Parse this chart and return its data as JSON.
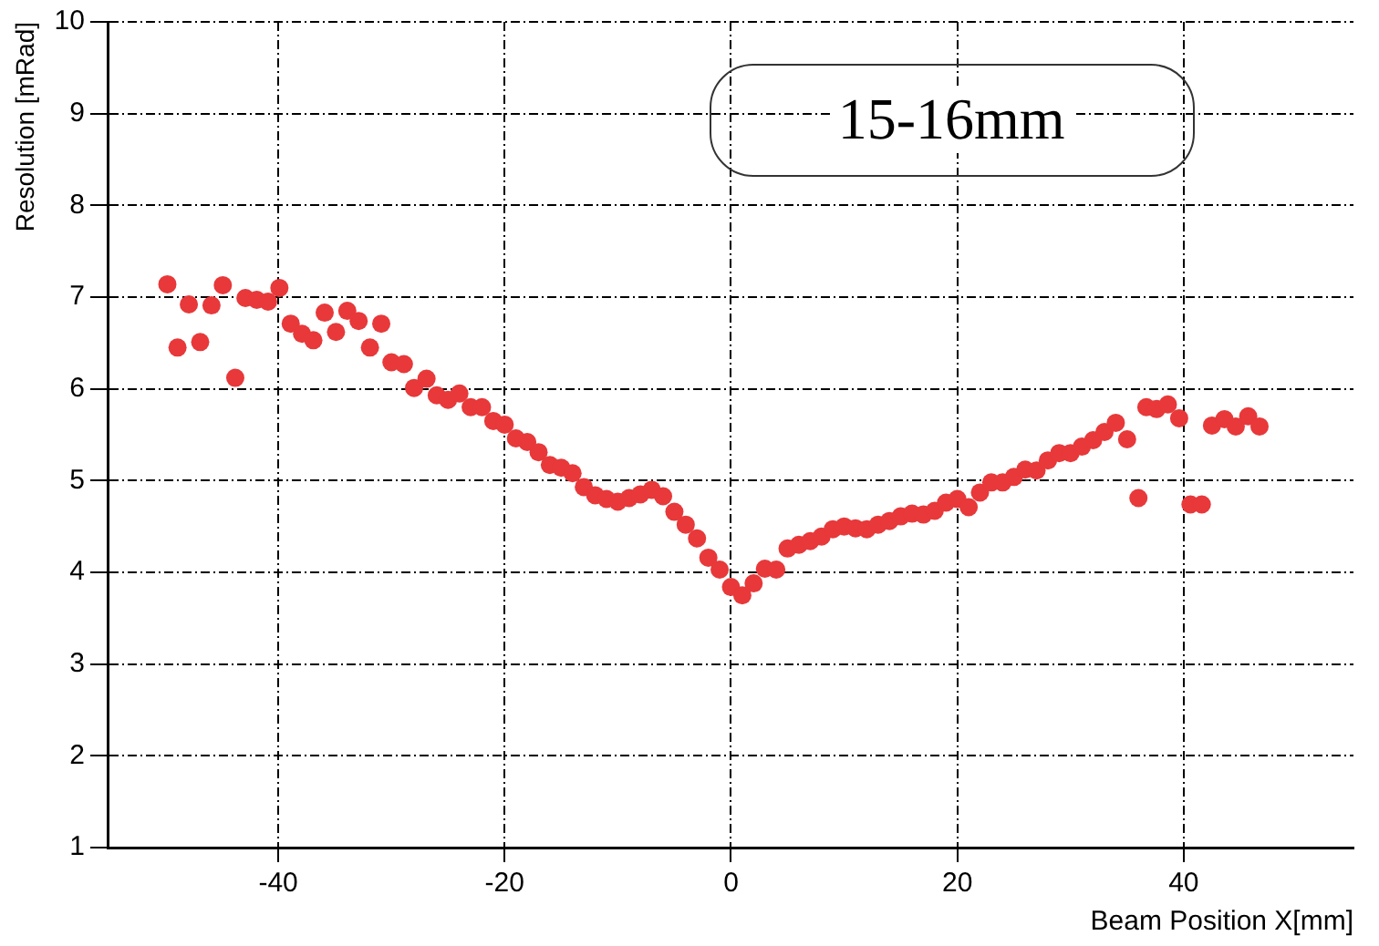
{
  "chart_data": {
    "type": "scatter",
    "xlabel": "Beam Position X[mm]",
    "ylabel": "Resolution [mRad]",
    "annotations": [
      "15-16mm"
    ],
    "xlim": [
      -55,
      55
    ],
    "xticks": [
      -40,
      -20,
      0,
      20,
      40
    ],
    "ylim": [
      1,
      10
    ],
    "yticks": [
      1,
      2,
      3,
      4,
      5,
      6,
      7,
      8,
      9,
      10
    ],
    "grid": true,
    "legend": false,
    "marker": "circle",
    "series": [
      {
        "color": "#e8383a",
        "x": [
          -49.8,
          -48.9,
          -47.9,
          -46.9,
          -45.9,
          -44.9,
          -43.8,
          -42.9,
          -41.9,
          -40.9,
          -39.9,
          -38.9,
          -37.9,
          -36.9,
          -35.9,
          -34.9,
          -33.9,
          -32.9,
          -31.9,
          -30.9,
          -30,
          -28.9,
          -28,
          -26.9,
          -26,
          -25,
          -24,
          -23,
          -22,
          -21,
          -20,
          -19,
          -18,
          -17,
          -16,
          -15,
          -14,
          -13,
          -12,
          -11,
          -10,
          -9,
          -8,
          -7,
          -6,
          -5,
          -4,
          -3,
          -2,
          -1,
          0,
          1,
          2,
          3,
          4,
          5,
          6,
          7,
          8,
          9,
          10,
          11,
          12,
          13,
          14,
          15,
          16,
          17,
          18,
          19,
          20,
          21,
          22,
          23,
          24,
          25,
          26,
          27,
          28,
          29,
          30,
          31,
          32,
          33,
          34,
          35,
          36,
          36.7,
          37.6,
          38.6,
          39.6,
          40.6,
          41.6,
          42.5,
          43.6,
          44.6,
          45.7,
          46.7
        ],
        "values": [
          7.14,
          6.45,
          6.92,
          6.51,
          6.91,
          7.13,
          6.12,
          6.99,
          6.97,
          6.95,
          7.1,
          6.71,
          6.6,
          6.53,
          6.83,
          6.62,
          6.85,
          6.74,
          6.45,
          6.71,
          6.29,
          6.27,
          6.01,
          6.11,
          5.93,
          5.88,
          5.95,
          5.8,
          5.8,
          5.65,
          5.61,
          5.46,
          5.42,
          5.31,
          5.17,
          5.14,
          5.08,
          4.93,
          4.84,
          4.8,
          4.77,
          4.81,
          4.85,
          4.9,
          4.83,
          4.66,
          4.52,
          4.37,
          4.16,
          4.03,
          3.84,
          3.75,
          3.88,
          4.04,
          4.03,
          4.26,
          4.3,
          4.34,
          4.39,
          4.47,
          4.5,
          4.48,
          4.47,
          4.52,
          4.56,
          4.61,
          4.64,
          4.63,
          4.67,
          4.76,
          4.8,
          4.71,
          4.87,
          4.98,
          4.98,
          5.04,
          5.12,
          5.11,
          5.22,
          5.3,
          5.3,
          5.37,
          5.44,
          5.53,
          5.63,
          5.45,
          4.81,
          5.8,
          5.78,
          5.83,
          5.68,
          4.74,
          4.74,
          5.6,
          5.67,
          5.59,
          5.7,
          5.59
        ]
      }
    ]
  }
}
